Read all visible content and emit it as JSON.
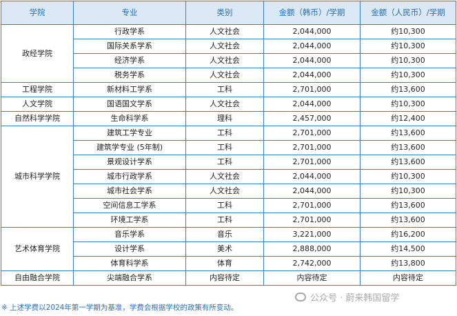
{
  "table": {
    "headers": [
      "学院",
      "专业",
      "类别",
      "金额（韩币）/学期",
      "金额（人民币）/学期"
    ],
    "groups": [
      {
        "college": "政经学院",
        "rows": [
          {
            "major": "行政学系",
            "category": "人文社会",
            "krw": "2,044,000",
            "rmb": "约10,300"
          },
          {
            "major": "国际关系学系",
            "category": "人文社会",
            "krw": "2,044,000",
            "rmb": "约10,300"
          },
          {
            "major": "经济学系",
            "category": "人文社会",
            "krw": "2,044,000",
            "rmb": "约10,300"
          },
          {
            "major": "税务学系",
            "category": "人文社会",
            "krw": "2,044,000",
            "rmb": "约10,300"
          }
        ]
      },
      {
        "college": "工程学院",
        "rows": [
          {
            "major": "新材料工学系",
            "category": "工科",
            "krw": "2,701,000",
            "rmb": "约13,600"
          }
        ]
      },
      {
        "college": "人文学院",
        "rows": [
          {
            "major": "国语国文学系",
            "category": "人文社会",
            "krw": "2,044,000",
            "rmb": "约10,300"
          }
        ]
      },
      {
        "college": "自然科学学院",
        "rows": [
          {
            "major": "生命科学系",
            "category": "理科",
            "krw": "2,457,000",
            "rmb": "约12,400"
          }
        ]
      },
      {
        "college": "城市科学学院",
        "rows": [
          {
            "major": "建筑工学专业",
            "category": "工科",
            "krw": "2,701,000",
            "rmb": "约13,600"
          },
          {
            "major": "建筑学专业 (5年制)",
            "category": "工科",
            "krw": "2,701,000",
            "rmb": "约13,600"
          },
          {
            "major": "景观设计学系",
            "category": "工科",
            "krw": "2,701,000",
            "rmb": "约13,600"
          },
          {
            "major": "城市行政学系",
            "category": "人文社会",
            "krw": "2,044,000",
            "rmb": "约10,300"
          },
          {
            "major": "城市社会学系",
            "category": "人文社会",
            "krw": "2,044,000",
            "rmb": "约10,300"
          },
          {
            "major": "空间信息工学系",
            "category": "工科",
            "krw": "2,701,000",
            "rmb": "约13,600"
          },
          {
            "major": "环境工学系",
            "category": "工科",
            "krw": "2,701,000",
            "rmb": "约13,600"
          }
        ]
      },
      {
        "college": "艺术体育学院",
        "rows": [
          {
            "major": "音乐学系",
            "category": "音乐",
            "krw": "3,221,000",
            "rmb": "约16,200"
          },
          {
            "major": "设计学系",
            "category": "美术",
            "krw": "2,888,000",
            "rmb": "约14,500"
          },
          {
            "major": "体育科学系",
            "category": "体育",
            "krw": "2,742,000",
            "rmb": "约13,800"
          }
        ]
      },
      {
        "college": "自由融合学院",
        "rows": [
          {
            "major": "尖端融合学系",
            "category": "内容待定",
            "krw": "内容待定",
            "rmb": "内容待定"
          }
        ]
      }
    ]
  },
  "footnote": "※ 上述学费以2024年第一学期为基准，学费会根据学校的政策有所变动。",
  "watermark": {
    "text": "公众号 · 蔚来韩国留学",
    "icon": "wechat-icon"
  },
  "colors": {
    "border": "#3a7fbf",
    "header_bg": "#dbe9f6",
    "header_text": "#2b6fb5",
    "footnote_text": "#2b6fb5",
    "watermark_text": "#9a9a9a"
  }
}
